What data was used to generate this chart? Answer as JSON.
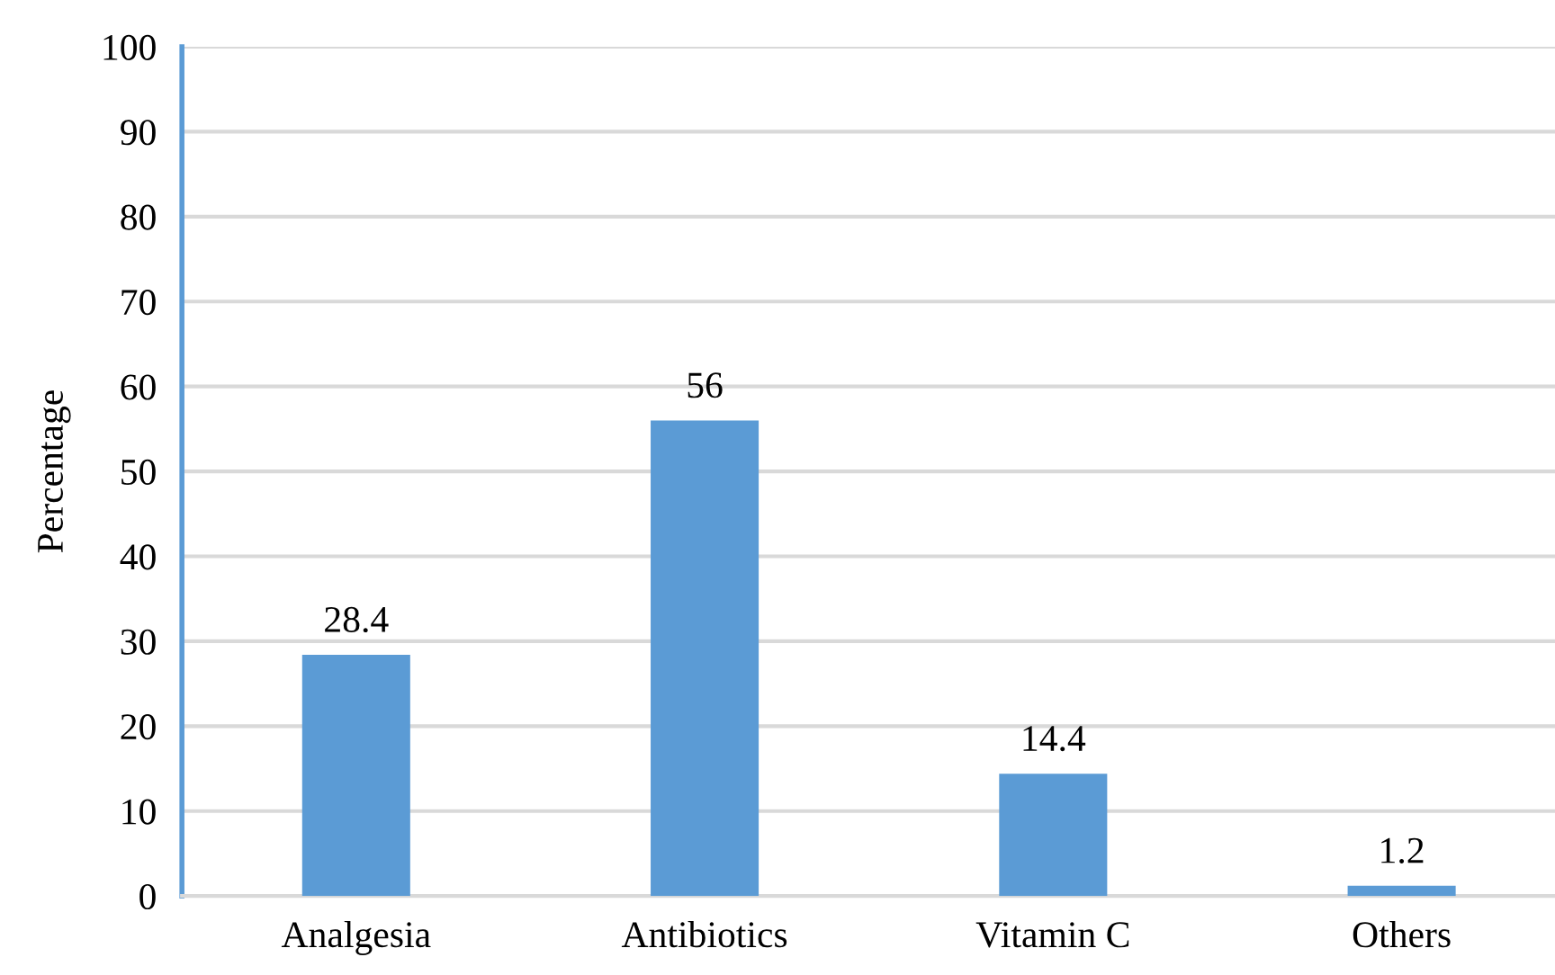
{
  "chart_data": {
    "type": "bar",
    "ylabel": "Percentage",
    "categories": [
      "Analgesia",
      "Antibiotics",
      "Vitamin C",
      "Others"
    ],
    "values": [
      28.4,
      56,
      14.4,
      1.2
    ],
    "color": "#5b9bd5",
    "ylim": [
      0,
      100
    ],
    "yticks": [
      0,
      10,
      20,
      30,
      40,
      50,
      60,
      70,
      80,
      90,
      100
    ],
    "grid": "y",
    "data_labels": true
  }
}
